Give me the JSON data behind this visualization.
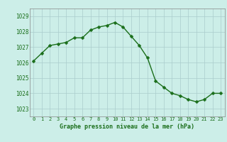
{
  "x": [
    0,
    1,
    2,
    3,
    4,
    5,
    6,
    7,
    8,
    9,
    10,
    11,
    12,
    13,
    14,
    15,
    16,
    17,
    18,
    19,
    20,
    21,
    22,
    23
  ],
  "y": [
    1026.1,
    1026.6,
    1027.1,
    1027.2,
    1027.3,
    1027.6,
    1027.6,
    1028.1,
    1028.3,
    1028.4,
    1028.6,
    1028.3,
    1027.7,
    1027.1,
    1026.3,
    1024.8,
    1024.4,
    1024.0,
    1023.85,
    1023.6,
    1023.45,
    1023.6,
    1024.0,
    1024.0
  ],
  "line_color": "#1a6e1a",
  "marker_color": "#1a6e1a",
  "bg_color": "#cceee8",
  "grid_color": "#aacccc",
  "xlabel": "Graphe pression niveau de la mer (hPa)",
  "xlabel_color": "#1a6e1a",
  "tick_color": "#1a6e1a",
  "ylim": [
    1022.5,
    1029.5
  ],
  "yticks": [
    1023,
    1024,
    1025,
    1026,
    1027,
    1028,
    1029
  ],
  "xticks": [
    0,
    1,
    2,
    3,
    4,
    5,
    6,
    7,
    8,
    9,
    10,
    11,
    12,
    13,
    14,
    15,
    16,
    17,
    18,
    19,
    20,
    21,
    22,
    23
  ],
  "marker_size": 2.5,
  "line_width": 1.0
}
